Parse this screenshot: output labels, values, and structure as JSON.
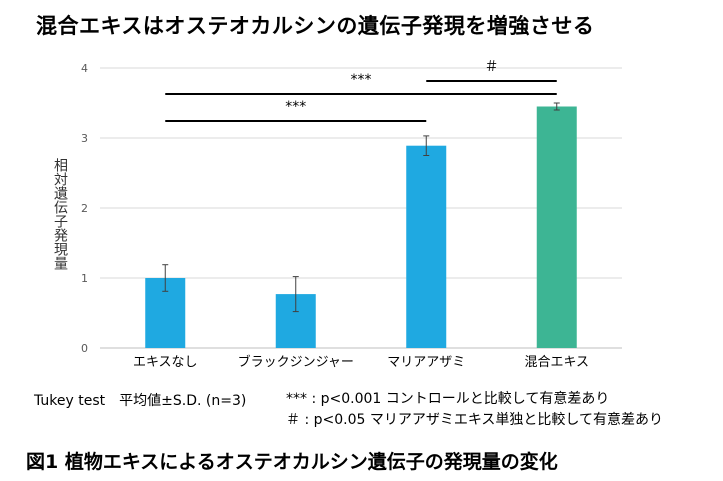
{
  "chart_data": {
    "type": "bar",
    "title": "混合エキスはオステオカルシンの遺伝子発現を増強させる",
    "ylabel": "相対遺伝子発現量",
    "xlabel": "",
    "ylim": [
      0,
      4
    ],
    "yticks": [
      "0",
      "1",
      "2",
      "3",
      "4"
    ],
    "grid": true,
    "categories": [
      "エキスなし",
      "ブラックジンジャー",
      "マリアアザミ",
      "混合エキス"
    ],
    "series": [
      {
        "values": [
          1.0,
          0.77,
          2.89,
          3.45
        ],
        "sd": [
          0.19,
          0.25,
          0.14,
          0.05
        ],
        "colors": [
          "#1fa9e1",
          "#1fa9e1",
          "#1fa9e1",
          "#3db594"
        ]
      }
    ],
    "significance": [
      {
        "from": 0,
        "to": 3,
        "label": "***"
      },
      {
        "from": 2,
        "to": 3,
        "label": "＃"
      },
      {
        "from": 0,
        "to": 2,
        "label": "***"
      }
    ]
  },
  "notes": {
    "test": "Tukey test　平均値±S.D. (n=3)",
    "note1": "*** : p<0.001 コントロールと比較して有意差あり",
    "note2": "＃ : p<0.05 マリアアザミエキス単独と比較して有意差あり"
  },
  "caption": "図1 植物エキスによるオステオカルシン遺伝子の発現量の変化"
}
